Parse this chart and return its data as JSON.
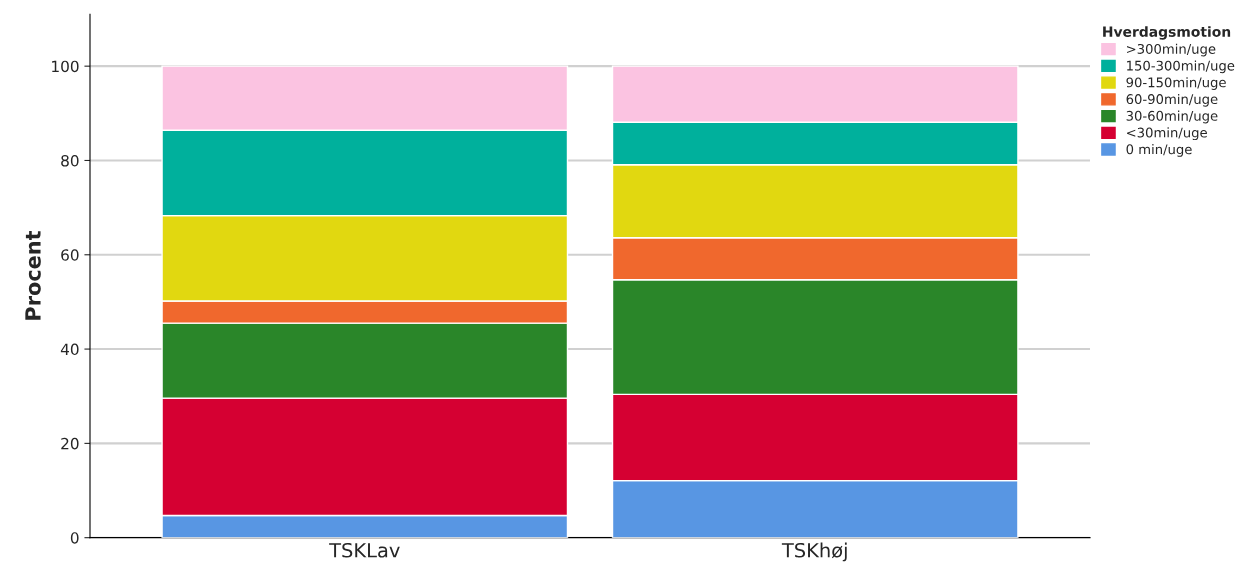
{
  "chart_data": {
    "type": "bar",
    "stacked": true,
    "ylabel": "Procent",
    "legend_title": "Hverdagsmotion",
    "categories": [
      "TSKLav",
      "TSKhøj"
    ],
    "series": [
      {
        "name": "0 min/uge",
        "color": "#5896e3",
        "values": [
          4.7,
          12.1
        ]
      },
      {
        "name": "<30min/uge",
        "color": "#d50032",
        "values": [
          24.9,
          18.3
        ]
      },
      {
        "name": "30-60min/uge",
        "color": "#2a8629",
        "values": [
          15.9,
          24.3
        ]
      },
      {
        "name": "60-90min/uge",
        "color": "#f0682d",
        "values": [
          4.7,
          8.9
        ]
      },
      {
        "name": "90-150min/uge",
        "color": "#e1d810",
        "values": [
          18.1,
          15.5
        ]
      },
      {
        "name": "150-300min/uge",
        "color": "#00b09c",
        "values": [
          18.1,
          9.0
        ]
      },
      {
        "name": ">300min/uge",
        "color": "#fbc3e1",
        "values": [
          13.6,
          11.9
        ]
      }
    ],
    "ylim": [
      0,
      111
    ],
    "yticks": [
      0,
      20,
      40,
      60,
      80,
      100
    ],
    "grid": "y",
    "legend": "top right"
  }
}
